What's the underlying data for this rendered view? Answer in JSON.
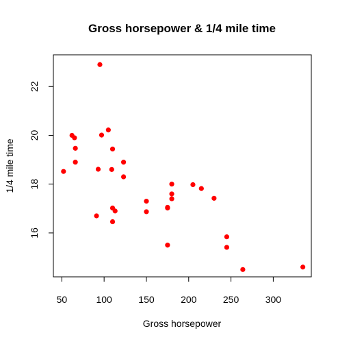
{
  "chart_data": {
    "type": "scatter",
    "title": "Gross horsepower & 1/4 mile time",
    "xlabel": "Gross horsepower",
    "ylabel": "1/4 mile time",
    "xlim": [
      40,
      345
    ],
    "ylim": [
      14.2,
      23.3
    ],
    "xticks": [
      50,
      100,
      150,
      200,
      250,
      300
    ],
    "yticks": [
      16,
      18,
      20,
      22
    ],
    "grid": false,
    "point_color": "#ff0000",
    "points": [
      {
        "x": 110,
        "y": 16.46
      },
      {
        "x": 110,
        "y": 17.02
      },
      {
        "x": 93,
        "y": 18.61
      },
      {
        "x": 110,
        "y": 19.44
      },
      {
        "x": 175,
        "y": 17.02
      },
      {
        "x": 105,
        "y": 20.22
      },
      {
        "x": 245,
        "y": 15.84
      },
      {
        "x": 62,
        "y": 20.0
      },
      {
        "x": 95,
        "y": 22.9
      },
      {
        "x": 123,
        "y": 18.3
      },
      {
        "x": 123,
        "y": 18.9
      },
      {
        "x": 180,
        "y": 17.4
      },
      {
        "x": 180,
        "y": 17.6
      },
      {
        "x": 180,
        "y": 18.0
      },
      {
        "x": 205,
        "y": 17.98
      },
      {
        "x": 215,
        "y": 17.82
      },
      {
        "x": 230,
        "y": 17.42
      },
      {
        "x": 66,
        "y": 19.47
      },
      {
        "x": 52,
        "y": 18.52
      },
      {
        "x": 65,
        "y": 19.9
      },
      {
        "x": 97,
        "y": 20.01
      },
      {
        "x": 150,
        "y": 16.87
      },
      {
        "x": 150,
        "y": 17.3
      },
      {
        "x": 245,
        "y": 15.41
      },
      {
        "x": 175,
        "y": 17.05
      },
      {
        "x": 66,
        "y": 18.9
      },
      {
        "x": 91,
        "y": 16.7
      },
      {
        "x": 113,
        "y": 16.9
      },
      {
        "x": 264,
        "y": 14.5
      },
      {
        "x": 175,
        "y": 15.5
      },
      {
        "x": 335,
        "y": 14.6
      },
      {
        "x": 109,
        "y": 18.6
      }
    ]
  }
}
